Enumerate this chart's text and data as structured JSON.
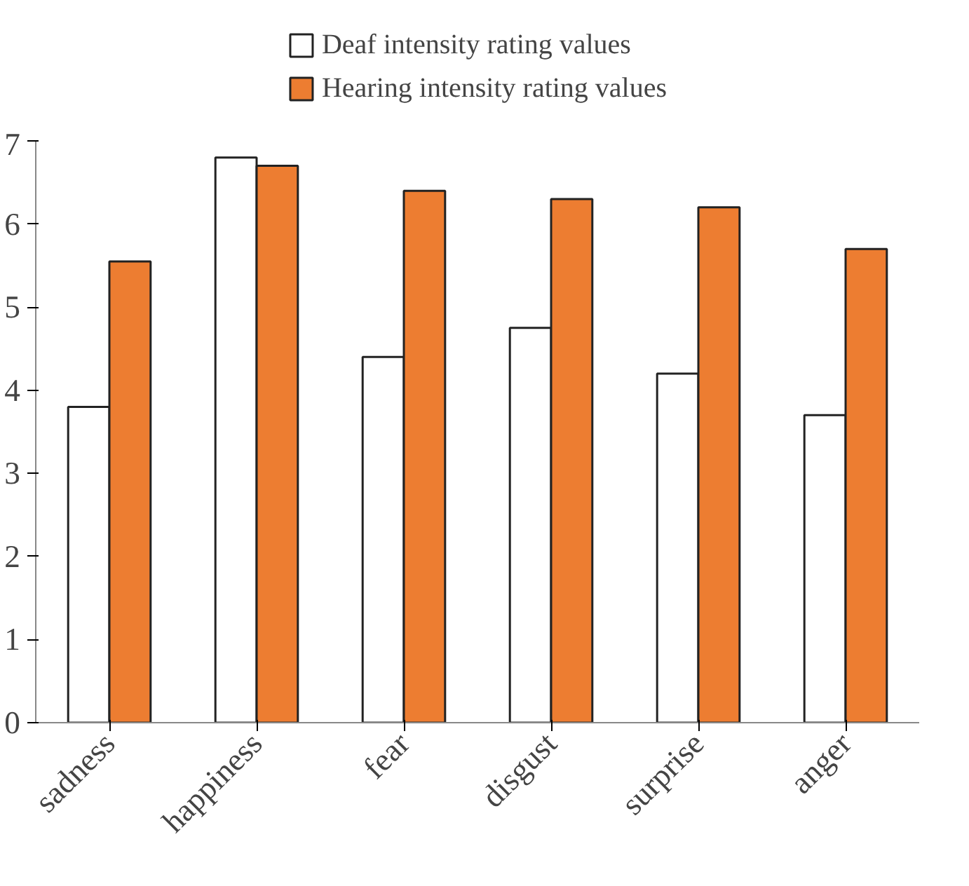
{
  "chart_data": {
    "type": "bar",
    "categories": [
      "sadness",
      "happiness",
      "fear",
      "disgust",
      "surprise",
      "anger"
    ],
    "series": [
      {
        "name": "Deaf intensity rating values",
        "color": "#ffffff",
        "values": [
          3.8,
          6.8,
          4.4,
          4.75,
          4.2,
          3.7
        ]
      },
      {
        "name": "Hearing intensity rating values",
        "color": "#ed7d31",
        "values": [
          5.55,
          6.7,
          6.4,
          6.3,
          6.2,
          5.7
        ]
      }
    ],
    "ylim": [
      0,
      7
    ],
    "yticks": [
      0,
      1,
      2,
      3,
      4,
      5,
      6,
      7
    ],
    "grid": false,
    "legend": "top"
  }
}
